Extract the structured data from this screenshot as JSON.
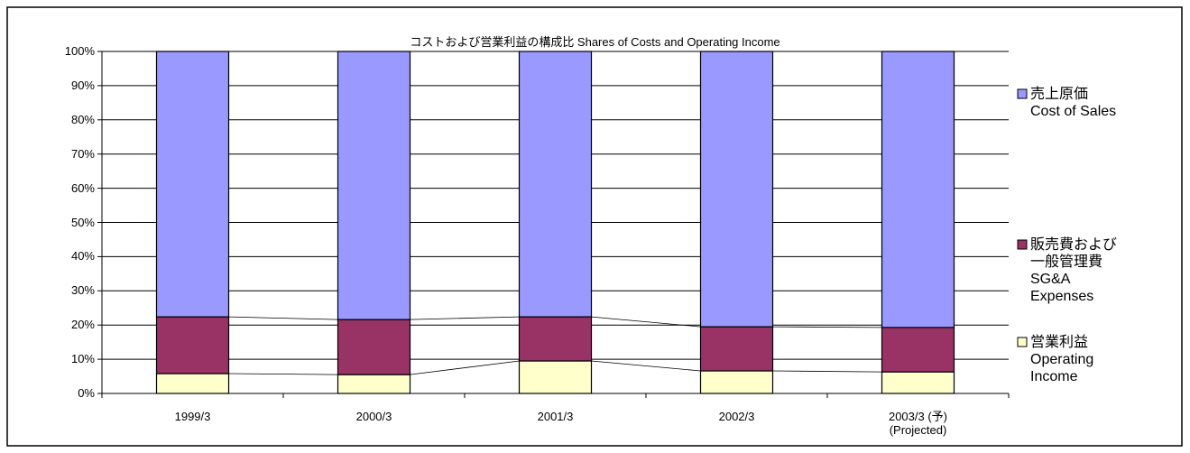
{
  "chart_data": {
    "type": "stacked_bar",
    "title": "コストおよび営業利益の構成比  Shares of Costs and Operating Income",
    "categories": [
      "1999/3",
      "2000/3",
      "2001/3",
      "2002/3",
      "2003/3 (予)\n(Projected)"
    ],
    "series": [
      {
        "name": "営業利益\nOperating\nIncome",
        "color": "#ffffcc",
        "values": [
          5.8,
          5.5,
          9.5,
          6.6,
          6.3
        ]
      },
      {
        "name": "販売費および\n一般管理費\nSG&A\nExpenses",
        "color": "#993366",
        "values": [
          16.6,
          16.1,
          12.9,
          12.9,
          13.0
        ]
      },
      {
        "name": "売上原価\nCost of Sales",
        "color": "#9999ff",
        "values": [
          77.6,
          78.4,
          77.6,
          80.5,
          80.7
        ]
      }
    ],
    "ylim": [
      0,
      100
    ],
    "yticks": [
      {
        "value": 0,
        "label": "0%"
      },
      {
        "value": 10,
        "label": "10%"
      },
      {
        "value": 20,
        "label": "20%"
      },
      {
        "value": 30,
        "label": "30%"
      },
      {
        "value": 40,
        "label": "40%"
      },
      {
        "value": 50,
        "label": "50%"
      },
      {
        "value": 60,
        "label": "60%"
      },
      {
        "value": 70,
        "label": "70%"
      },
      {
        "value": 80,
        "label": "80%"
      },
      {
        "value": 90,
        "label": "90%"
      },
      {
        "value": 100,
        "label": "100%"
      }
    ],
    "grid": true,
    "legend": "right"
  }
}
